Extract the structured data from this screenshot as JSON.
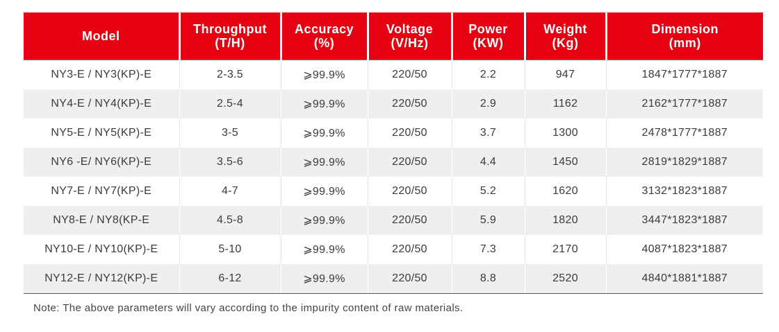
{
  "table": {
    "headers": [
      {
        "line1": "Model",
        "line2": ""
      },
      {
        "line1": "Throughput",
        "line2": "(T/H)"
      },
      {
        "line1": "Accuracy",
        "line2": "(%)"
      },
      {
        "line1": "Voltage",
        "line2": "(V/Hz)"
      },
      {
        "line1": "Power",
        "line2": "(KW)"
      },
      {
        "line1": "Weight",
        "line2": "(Kg)"
      },
      {
        "line1": "Dimension",
        "line2": "(mm)"
      }
    ],
    "rows": [
      [
        "NY3-E / NY3(KP)-E",
        "2-3.5",
        "⩾99.9%",
        "220/50",
        "2.2",
        "947",
        "1847*1777*1887"
      ],
      [
        "NY4-E / NY4(KP)-E",
        "2.5-4",
        "⩾99.9%",
        "220/50",
        "2.9",
        "1162",
        "2162*1777*1887"
      ],
      [
        "NY5-E / NY5(KP)-E",
        "3-5",
        "⩾99.9%",
        "220/50",
        "3.7",
        "1300",
        "2478*1777*1887"
      ],
      [
        "NY6 -E/ NY6(KP)-E",
        "3.5-6",
        "⩾99.9%",
        "220/50",
        "4.4",
        "1450",
        "2819*1829*1887"
      ],
      [
        "NY7-E / NY7(KP)-E",
        "4-7",
        "⩾99.9%",
        "220/50",
        "5.2",
        "1620",
        "3132*1823*1887"
      ],
      [
        "NY8-E / NY8(KP-E",
        "4.5-8",
        "⩾99.9%",
        "220/50",
        "5.9",
        "1820",
        "3447*1823*1887"
      ],
      [
        "NY10-E / NY10(KP)-E",
        "5-10",
        "⩾99.9%",
        "220/50",
        "7.3",
        "2170",
        "4087*1823*1887"
      ],
      [
        "NY12-E / NY12(KP)-E",
        "6-12",
        "⩾99.9%",
        "220/50",
        "8.8",
        "2520",
        "4840*1881*1887"
      ]
    ]
  },
  "note": "Note: The above parameters will vary according to the impurity content of raw materials.",
  "colors": {
    "header_bg": "#e60012",
    "header_text": "#ffffff",
    "stripe_bg": "#efefef"
  }
}
